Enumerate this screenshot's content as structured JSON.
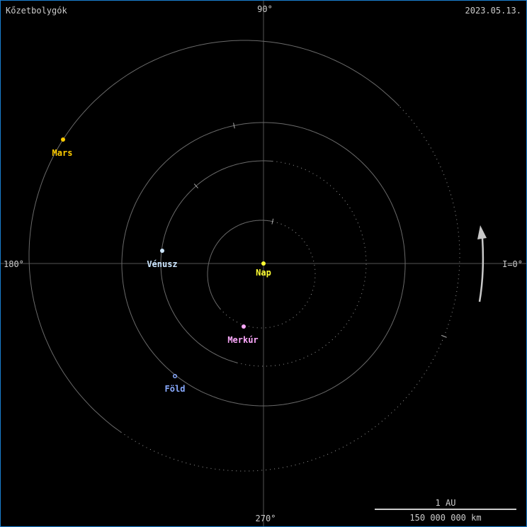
{
  "title": "Kőzetbolygók",
  "date": "2023.05.13.",
  "axes": {
    "deg90": "90°",
    "deg180": "180°",
    "deg270": "270°",
    "deg0": "I=0°"
  },
  "scale": {
    "top": "1 AU",
    "bottom": "150 000 000 km"
  },
  "colors": {
    "background": "#000000",
    "orbit": "#6a6a6a",
    "axis": "#555555",
    "text": "#cccccc",
    "border": "#1a7fd0"
  },
  "bodies": {
    "sun": {
      "label": "Nap",
      "color": "#ffff33"
    },
    "mercury": {
      "label": "Merkúr",
      "color": "#ffaaff"
    },
    "venus": {
      "label": "Vénusz",
      "color": "#cce6ff"
    },
    "earth": {
      "label": "Föld",
      "color": "#88aaff"
    },
    "mars": {
      "label": "Mars",
      "color": "#ffcc00"
    }
  },
  "direction_arrow": "counterclockwise-arrow-icon"
}
